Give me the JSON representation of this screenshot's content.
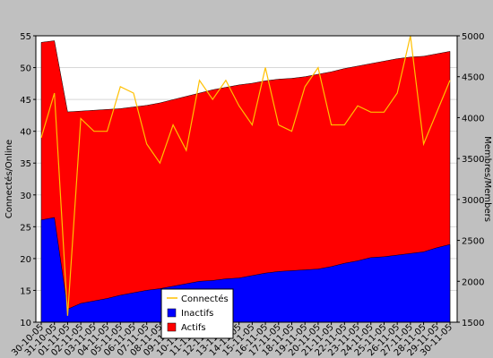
{
  "chart_data": {
    "type": "area",
    "ylabel_left": "Connectés/Online",
    "ylabel_right": "Membres/Members",
    "ylim_left": [
      10,
      55
    ],
    "ylim_right": [
      1500,
      5000
    ],
    "yticks_left": [
      10,
      15,
      20,
      25,
      30,
      35,
      40,
      45,
      50,
      55
    ],
    "yticks_right": [
      1500,
      2000,
      2500,
      3000,
      3500,
      4000,
      4500,
      5000
    ],
    "categories": [
      "30-10-05",
      "31-10-05",
      "01-11-05",
      "02-11-05",
      "03-11-05",
      "04-11-05",
      "05-11-05",
      "06-11-05",
      "07-11-05",
      "08-11-05",
      "09-11-05",
      "10-11-05",
      "11-11-05",
      "12-11-05",
      "13-11-05",
      "14-11-05",
      "15-11-05",
      "16-11-05",
      "17-11-05",
      "18-11-05",
      "19-11-05",
      "20-11-05",
      "21-11-05",
      "22-11-05",
      "23-11-05",
      "24-11-05",
      "25-11-05",
      "26-11-05",
      "27-11-05",
      "28-11-05",
      "29-11-05",
      "30-11-05"
    ],
    "legend": [
      "Connectés",
      "Inactifs",
      "Actifs"
    ],
    "grid": true,
    "series": [
      {
        "name": "Connectés",
        "axis": "left",
        "style": "line",
        "color": "#ffc000",
        "values": [
          39,
          46,
          11,
          42,
          40,
          40,
          47,
          46,
          38,
          35,
          41,
          37,
          48,
          45,
          48,
          44,
          41,
          50,
          41,
          40,
          47,
          50,
          41,
          41,
          44,
          43,
          43,
          46,
          55,
          38,
          43,
          48
        ]
      },
      {
        "name": "Inactifs",
        "axis": "right",
        "style": "area",
        "color": "#0000ff",
        "values": [
          2750,
          2780,
          1660,
          1730,
          1760,
          1790,
          1830,
          1860,
          1890,
          1910,
          1940,
          1970,
          2000,
          2010,
          2030,
          2040,
          2070,
          2100,
          2120,
          2130,
          2140,
          2150,
          2180,
          2220,
          2250,
          2290,
          2300,
          2320,
          2340,
          2360,
          2410,
          2450
        ]
      },
      {
        "name": "Actifs",
        "axis": "right",
        "style": "area",
        "color": "#ff0000",
        "values": [
          4920,
          4940,
          4070,
          4080,
          4090,
          4100,
          4110,
          4130,
          4150,
          4180,
          4220,
          4260,
          4300,
          4340,
          4370,
          4400,
          4420,
          4450,
          4470,
          4480,
          4500,
          4530,
          4560,
          4600,
          4630,
          4660,
          4690,
          4720,
          4740,
          4750,
          4780,
          4810
        ]
      }
    ]
  }
}
